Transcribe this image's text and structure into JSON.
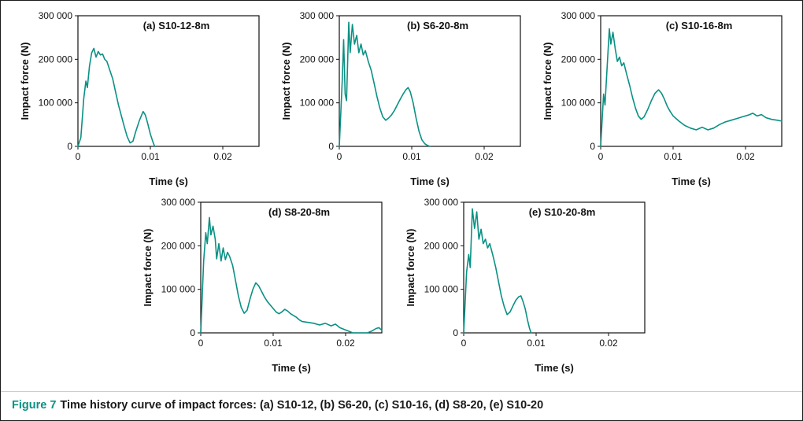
{
  "figure": {
    "caption_label": "Figure 7",
    "caption_text": "Time history curve of impact forces: (a) S10-12, (b) S6-20, (c) S10-16, (d) S8-20, (e) S10-20"
  },
  "colors": {
    "accent": "#0a9184",
    "axis": "#111111"
  },
  "chart_data": [
    {
      "type": "line",
      "title": "(a) S10-12-8m",
      "xlabel": "Time (s)",
      "ylabel": "Impact force (N)",
      "xlim": [
        0,
        0.025
      ],
      "ylim": [
        0,
        300000
      ],
      "xticks": [
        [
          0,
          "0"
        ],
        [
          0.01,
          "0.01"
        ],
        [
          0.02,
          "0.02"
        ]
      ],
      "yticks": [
        [
          0,
          "0"
        ],
        [
          100000,
          "100 000"
        ],
        [
          200000,
          "200 000"
        ],
        [
          300000,
          "300 000"
        ]
      ],
      "line_color": "#0a9184",
      "grid": false,
      "points": [
        [
          0,
          0
        ],
        [
          0.0004,
          20000
        ],
        [
          0.0008,
          110000
        ],
        [
          0.0011,
          150000
        ],
        [
          0.0013,
          135000
        ],
        [
          0.0016,
          185000
        ],
        [
          0.0019,
          215000
        ],
        [
          0.0022,
          225000
        ],
        [
          0.0025,
          205000
        ],
        [
          0.0028,
          218000
        ],
        [
          0.0031,
          210000
        ],
        [
          0.0034,
          212000
        ],
        [
          0.0037,
          200000
        ],
        [
          0.004,
          195000
        ],
        [
          0.0044,
          175000
        ],
        [
          0.0048,
          155000
        ],
        [
          0.0052,
          125000
        ],
        [
          0.0056,
          95000
        ],
        [
          0.006,
          70000
        ],
        [
          0.0064,
          45000
        ],
        [
          0.0068,
          22000
        ],
        [
          0.0072,
          8000
        ],
        [
          0.0076,
          12000
        ],
        [
          0.008,
          35000
        ],
        [
          0.0085,
          60000
        ],
        [
          0.009,
          80000
        ],
        [
          0.0093,
          72000
        ],
        [
          0.0096,
          55000
        ],
        [
          0.01,
          28000
        ],
        [
          0.0104,
          8000
        ],
        [
          0.0106,
          0
        ]
      ]
    },
    {
      "type": "line",
      "title": "(b) S6-20-8m",
      "xlabel": "Time (s)",
      "ylabel": "Impact force (N)",
      "xlim": [
        0,
        0.025
      ],
      "ylim": [
        0,
        300000
      ],
      "xticks": [
        [
          0,
          "0"
        ],
        [
          0.01,
          "0.01"
        ],
        [
          0.02,
          "0.02"
        ]
      ],
      "yticks": [
        [
          0,
          "0"
        ],
        [
          100000,
          "100 000"
        ],
        [
          200000,
          "200 000"
        ],
        [
          300000,
          "300 000"
        ]
      ],
      "line_color": "#0a9184",
      "grid": false,
      "points": [
        [
          0,
          0
        ],
        [
          0.0004,
          150000
        ],
        [
          0.0006,
          245000
        ],
        [
          0.0008,
          120000
        ],
        [
          0.001,
          105000
        ],
        [
          0.0013,
          285000
        ],
        [
          0.0015,
          215000
        ],
        [
          0.0018,
          280000
        ],
        [
          0.0021,
          235000
        ],
        [
          0.0024,
          255000
        ],
        [
          0.0027,
          215000
        ],
        [
          0.003,
          235000
        ],
        [
          0.0033,
          210000
        ],
        [
          0.0036,
          220000
        ],
        [
          0.004,
          195000
        ],
        [
          0.0044,
          175000
        ],
        [
          0.0048,
          145000
        ],
        [
          0.0052,
          115000
        ],
        [
          0.0056,
          88000
        ],
        [
          0.006,
          68000
        ],
        [
          0.0064,
          60000
        ],
        [
          0.0068,
          65000
        ],
        [
          0.0072,
          72000
        ],
        [
          0.0076,
          82000
        ],
        [
          0.008,
          95000
        ],
        [
          0.0084,
          108000
        ],
        [
          0.0088,
          120000
        ],
        [
          0.0092,
          130000
        ],
        [
          0.0095,
          135000
        ],
        [
          0.0098,
          125000
        ],
        [
          0.0102,
          100000
        ],
        [
          0.0106,
          65000
        ],
        [
          0.011,
          35000
        ],
        [
          0.0114,
          15000
        ],
        [
          0.0118,
          6000
        ],
        [
          0.0122,
          2000
        ],
        [
          0.0125,
          0
        ]
      ]
    },
    {
      "type": "line",
      "title": "(c) S10-16-8m",
      "xlabel": "Time (s)",
      "ylabel": "Impact force (N)",
      "xlim": [
        0,
        0.025
      ],
      "ylim": [
        0,
        300000
      ],
      "xticks": [
        [
          0,
          "0"
        ],
        [
          0.01,
          "0.01"
        ],
        [
          0.02,
          "0.02"
        ]
      ],
      "yticks": [
        [
          0,
          "0"
        ],
        [
          100000,
          "100 000"
        ],
        [
          200000,
          "200 000"
        ],
        [
          300000,
          "300 000"
        ]
      ],
      "line_color": "#0a9184",
      "grid": false,
      "points": [
        [
          0,
          0
        ],
        [
          0.0004,
          120000
        ],
        [
          0.0006,
          95000
        ],
        [
          0.0009,
          185000
        ],
        [
          0.0012,
          270000
        ],
        [
          0.0014,
          235000
        ],
        [
          0.0017,
          262000
        ],
        [
          0.002,
          225000
        ],
        [
          0.0023,
          195000
        ],
        [
          0.0026,
          205000
        ],
        [
          0.0029,
          185000
        ],
        [
          0.0032,
          192000
        ],
        [
          0.0036,
          165000
        ],
        [
          0.004,
          140000
        ],
        [
          0.0044,
          112000
        ],
        [
          0.0048,
          88000
        ],
        [
          0.0052,
          70000
        ],
        [
          0.0056,
          62000
        ],
        [
          0.006,
          68000
        ],
        [
          0.0065,
          85000
        ],
        [
          0.007,
          105000
        ],
        [
          0.0075,
          122000
        ],
        [
          0.008,
          130000
        ],
        [
          0.0084,
          122000
        ],
        [
          0.0088,
          108000
        ],
        [
          0.0092,
          92000
        ],
        [
          0.0096,
          80000
        ],
        [
          0.01,
          70000
        ],
        [
          0.0108,
          58000
        ],
        [
          0.0116,
          48000
        ],
        [
          0.0124,
          42000
        ],
        [
          0.0132,
          38000
        ],
        [
          0.014,
          44000
        ],
        [
          0.0148,
          38000
        ],
        [
          0.0156,
          42000
        ],
        [
          0.0164,
          50000
        ],
        [
          0.0172,
          56000
        ],
        [
          0.018,
          60000
        ],
        [
          0.0188,
          64000
        ],
        [
          0.0196,
          68000
        ],
        [
          0.0204,
          72000
        ],
        [
          0.021,
          76000
        ],
        [
          0.0216,
          70000
        ],
        [
          0.0222,
          73000
        ],
        [
          0.0228,
          66000
        ],
        [
          0.0236,
          62000
        ],
        [
          0.0244,
          60000
        ],
        [
          0.025,
          58000
        ]
      ]
    },
    {
      "type": "line",
      "title": "(d) S8-20-8m",
      "xlabel": "Time (s)",
      "ylabel": "Impact force (N)",
      "xlim": [
        0,
        0.025
      ],
      "ylim": [
        0,
        300000
      ],
      "xticks": [
        [
          0,
          "0"
        ],
        [
          0.01,
          "0.01"
        ],
        [
          0.02,
          "0.02"
        ]
      ],
      "yticks": [
        [
          0,
          "0"
        ],
        [
          100000,
          "100 000"
        ],
        [
          200000,
          "200 000"
        ],
        [
          300000,
          "300 000"
        ]
      ],
      "line_color": "#0a9184",
      "grid": false,
      "points": [
        [
          0,
          0
        ],
        [
          0.0004,
          165000
        ],
        [
          0.0007,
          230000
        ],
        [
          0.0009,
          205000
        ],
        [
          0.0012,
          265000
        ],
        [
          0.0014,
          225000
        ],
        [
          0.0017,
          245000
        ],
        [
          0.002,
          215000
        ],
        [
          0.0022,
          170000
        ],
        [
          0.0025,
          205000
        ],
        [
          0.0028,
          165000
        ],
        [
          0.0031,
          195000
        ],
        [
          0.0034,
          168000
        ],
        [
          0.0037,
          185000
        ],
        [
          0.004,
          175000
        ],
        [
          0.0044,
          155000
        ],
        [
          0.0048,
          120000
        ],
        [
          0.0052,
          85000
        ],
        [
          0.0056,
          58000
        ],
        [
          0.006,
          45000
        ],
        [
          0.0064,
          52000
        ],
        [
          0.0068,
          78000
        ],
        [
          0.0072,
          100000
        ],
        [
          0.0076,
          115000
        ],
        [
          0.008,
          108000
        ],
        [
          0.0084,
          95000
        ],
        [
          0.0088,
          82000
        ],
        [
          0.0092,
          72000
        ],
        [
          0.0096,
          64000
        ],
        [
          0.01,
          56000
        ],
        [
          0.0104,
          48000
        ],
        [
          0.0108,
          44000
        ],
        [
          0.0112,
          48000
        ],
        [
          0.0116,
          54000
        ],
        [
          0.012,
          50000
        ],
        [
          0.0124,
          44000
        ],
        [
          0.0128,
          40000
        ],
        [
          0.0132,
          36000
        ],
        [
          0.0136,
          30000
        ],
        [
          0.014,
          26000
        ],
        [
          0.0148,
          24000
        ],
        [
          0.0156,
          22000
        ],
        [
          0.0164,
          18000
        ],
        [
          0.0172,
          22000
        ],
        [
          0.018,
          16000
        ],
        [
          0.0186,
          20000
        ],
        [
          0.0192,
          12000
        ],
        [
          0.0198,
          8000
        ],
        [
          0.0204,
          4000
        ],
        [
          0.021,
          0
        ],
        [
          0.022,
          0
        ],
        [
          0.023,
          0
        ],
        [
          0.0236,
          4000
        ],
        [
          0.0242,
          10000
        ],
        [
          0.0246,
          12000
        ],
        [
          0.025,
          6000
        ]
      ]
    },
    {
      "type": "line",
      "title": "(e) S10-20-8m",
      "xlabel": "Time (s)",
      "ylabel": "Impact force (N)",
      "xlim": [
        0,
        0.025
      ],
      "ylim": [
        0,
        300000
      ],
      "xticks": [
        [
          0,
          "0"
        ],
        [
          0.01,
          "0.01"
        ],
        [
          0.02,
          "0.02"
        ]
      ],
      "yticks": [
        [
          0,
          "0"
        ],
        [
          100000,
          "100 000"
        ],
        [
          200000,
          "200 000"
        ],
        [
          300000,
          "300 000"
        ]
      ],
      "line_color": "#0a9184",
      "grid": false,
      "points": [
        [
          0,
          0
        ],
        [
          0.0004,
          140000
        ],
        [
          0.0007,
          180000
        ],
        [
          0.0009,
          150000
        ],
        [
          0.0012,
          285000
        ],
        [
          0.0015,
          240000
        ],
        [
          0.0018,
          278000
        ],
        [
          0.0021,
          215000
        ],
        [
          0.0024,
          238000
        ],
        [
          0.0027,
          205000
        ],
        [
          0.003,
          215000
        ],
        [
          0.0033,
          195000
        ],
        [
          0.0036,
          205000
        ],
        [
          0.004,
          180000
        ],
        [
          0.0044,
          152000
        ],
        [
          0.0048,
          118000
        ],
        [
          0.0052,
          85000
        ],
        [
          0.0056,
          60000
        ],
        [
          0.006,
          42000
        ],
        [
          0.0064,
          48000
        ],
        [
          0.0068,
          62000
        ],
        [
          0.0072,
          75000
        ],
        [
          0.0076,
          83000
        ],
        [
          0.0079,
          85000
        ],
        [
          0.0082,
          72000
        ],
        [
          0.0085,
          55000
        ],
        [
          0.0088,
          30000
        ],
        [
          0.0091,
          10000
        ],
        [
          0.0093,
          0
        ]
      ]
    }
  ]
}
